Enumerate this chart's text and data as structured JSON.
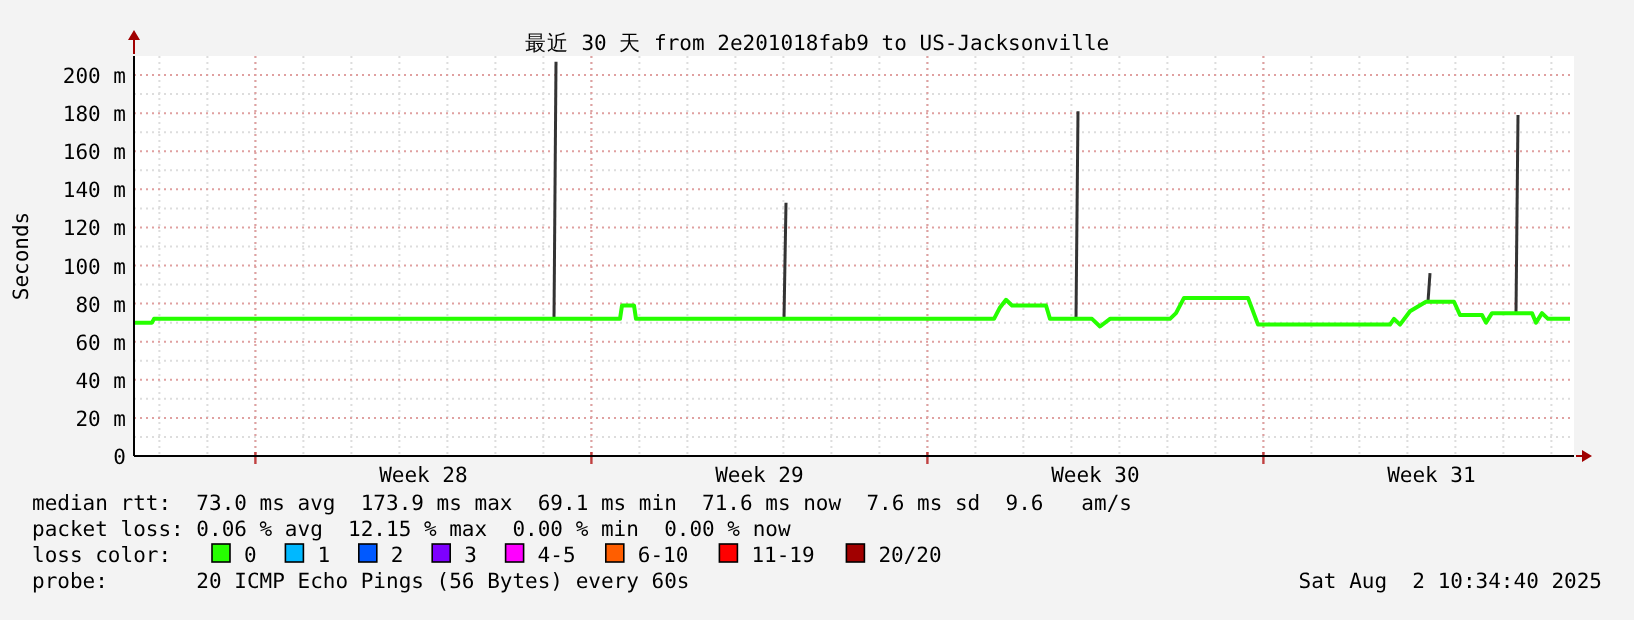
{
  "chart_data": {
    "type": "line",
    "title": "最近 30 天 from 2e201018fab9 to US-Jacksonville",
    "ylabel": "Seconds",
    "xlim": [
      "2025-07-04T11:18",
      "2025-08-03T11:18"
    ],
    "xticks": [
      {
        "value": "2025-07-07T00:00",
        "label": null
      },
      {
        "value": "2025-07-10T12:00",
        "label": "Week 28"
      },
      {
        "value": "2025-07-14T00:00",
        "label": null
      },
      {
        "value": "2025-07-17T12:00",
        "label": "Week 29"
      },
      {
        "value": "2025-07-21T00:00",
        "label": null
      },
      {
        "value": "2025-07-24T12:00",
        "label": "Week 30"
      },
      {
        "value": "2025-07-28T00:00",
        "label": null
      },
      {
        "value": "2025-07-31T12:00",
        "label": "Week 31"
      }
    ],
    "ylim": [
      0,
      210
    ],
    "yticks": [
      0,
      {
        "value": 20,
        "label": "20 m"
      },
      {
        "value": 40,
        "label": "40 m"
      },
      {
        "value": 60,
        "label": "60 m"
      },
      {
        "value": 80,
        "label": "80 m"
      },
      {
        "value": 100,
        "label": "100 m"
      },
      {
        "value": 120,
        "label": "120 m"
      },
      {
        "value": 140,
        "label": "140 m"
      },
      {
        "value": 160,
        "label": "160 m"
      },
      {
        "value": 180,
        "label": "180 m"
      },
      {
        "value": 200,
        "label": "200 m"
      }
    ],
    "grid": true,
    "legend": "bottom",
    "legend_title": "loss color:",
    "x": [
      "2025-07-04T11:18",
      "2025-07-04T20:18",
      "2025-07-04T21:18",
      "2025-07-14T14:18",
      "2025-07-14T15:18",
      "2025-07-14T21:18",
      "2025-07-14T22:18",
      "2025-07-22T09:18",
      "2025-07-22T12:18",
      "2025-07-22T15:18",
      "2025-07-22T18:18",
      "2025-07-23T11:18",
      "2025-07-23T13:18",
      "2025-07-24T10:18",
      "2025-07-24T14:18",
      "2025-07-24T19:18",
      "2025-07-26T01:18",
      "2025-07-26T04:18",
      "2025-07-26T08:18",
      "2025-07-27T16:18",
      "2025-07-27T21:18",
      "2025-07-30T15:18",
      "2025-07-30T17:18",
      "2025-07-30T20:18",
      "2025-07-31T01:18",
      "2025-07-31T09:18",
      "2025-07-31T23:18",
      "2025-08-01T02:18",
      "2025-08-01T13:18",
      "2025-08-01T15:18",
      "2025-08-01T18:18",
      "2025-08-02T14:18",
      "2025-08-02T16:18",
      "2025-08-02T19:18",
      "2025-08-02T22:18",
      "2025-08-03T09:18"
    ],
    "series": [
      {
        "color": "#333333",
        "x": [
          "2025-07-13T05:18",
          "2025-07-13T06:18"
        ],
        "values": [
          72,
          207
        ]
      },
      {
        "color": "#333333",
        "x": [
          "2025-07-18T00:18",
          "2025-07-18T01:18"
        ],
        "values": [
          72,
          133
        ]
      },
      {
        "color": "#333333",
        "x": [
          "2025-07-24T02:18",
          "2025-07-24T03:18"
        ],
        "values": [
          72,
          181
        ]
      },
      {
        "color": "#333333",
        "x": [
          "2025-07-31T10:18",
          "2025-07-31T11:18"
        ],
        "values": [
          81,
          96
        ]
      },
      {
        "color": "#333333",
        "x": [
          "2025-08-02T06:18",
          "2025-08-02T07:18"
        ],
        "values": [
          75,
          179
        ]
      },
      {
        "name": "0",
        "color": "#26ff00",
        "values": [
          70,
          70,
          72,
          72,
          79,
          79,
          72,
          72,
          78,
          82,
          79,
          79,
          72,
          72,
          68,
          72,
          72,
          75,
          83,
          83,
          69,
          69,
          72,
          69,
          76,
          81,
          81,
          74,
          74,
          70,
          75,
          75,
          70,
          75,
          72,
          72
        ]
      },
      {
        "name": "1",
        "color": "#00b8ff",
        "values": [
          null,
          null,
          null,
          null,
          null,
          null,
          null,
          null,
          null,
          null,
          null,
          null,
          null,
          null,
          null,
          null,
          null,
          null,
          null,
          null,
          null,
          null,
          null,
          null,
          null,
          null,
          null,
          null,
          null,
          null,
          null,
          null,
          null,
          null,
          null,
          null
        ]
      },
      {
        "name": "2",
        "color": "#0059ff",
        "values": [
          null,
          null,
          null,
          null,
          null,
          null,
          null,
          null,
          null,
          null,
          null,
          null,
          null,
          null,
          null,
          null,
          null,
          null,
          null,
          null,
          null,
          null,
          null,
          null,
          null,
          null,
          null,
          null,
          null,
          null,
          null,
          null,
          null,
          null,
          null,
          null
        ]
      },
      {
        "name": "3",
        "color": "#7e00ff",
        "values": [
          null,
          null,
          null,
          null,
          null,
          null,
          null,
          null,
          null,
          null,
          null,
          null,
          null,
          null,
          null,
          null,
          null,
          null,
          null,
          null,
          null,
          null,
          null,
          null,
          null,
          null,
          null,
          null,
          null,
          null,
          null,
          null,
          null,
          null,
          null,
          null
        ]
      },
      {
        "name": "4-5",
        "color": "#ff00ff",
        "values": [
          null,
          null,
          null,
          null,
          null,
          null,
          null,
          null,
          null,
          null,
          null,
          null,
          null,
          null,
          null,
          null,
          null,
          null,
          null,
          null,
          null,
          null,
          null,
          null,
          null,
          null,
          null,
          null,
          null,
          null,
          null,
          null,
          null,
          null,
          null,
          null
        ]
      },
      {
        "name": "6-10",
        "color": "#ff5e00",
        "values": [
          null,
          null,
          null,
          null,
          null,
          null,
          null,
          null,
          null,
          null,
          null,
          null,
          null,
          null,
          null,
          null,
          null,
          null,
          null,
          null,
          null,
          null,
          null,
          null,
          null,
          null,
          null,
          null,
          null,
          null,
          null,
          null,
          null,
          null,
          null,
          null
        ]
      },
      {
        "name": "11-19",
        "color": "#ff0000",
        "values": [
          null,
          null,
          null,
          null,
          null,
          null,
          null,
          null,
          null,
          null,
          null,
          null,
          null,
          null,
          null,
          null,
          null,
          null,
          null,
          null,
          null,
          null,
          null,
          null,
          null,
          null,
          null,
          null,
          null,
          null,
          null,
          null,
          null,
          null,
          null,
          null
        ]
      },
      {
        "name": "20/20",
        "color": "#a10000",
        "values": [
          null,
          null,
          null,
          null,
          null,
          null,
          null,
          null,
          null,
          null,
          null,
          null,
          null,
          null,
          null,
          null,
          null,
          null,
          null,
          null,
          null,
          null,
          null,
          null,
          null,
          null,
          null,
          null,
          null,
          null,
          null,
          null,
          null,
          null,
          null,
          null
        ]
      }
    ],
    "annotations": [
      "median rtt:  73.0 ms avg  173.9 ms max  69.1 ms min  71.6 ms now  7.6 ms sd  9.6   am/s",
      "packet loss: 0.06 % avg  12.15 % max  0.00 % min  0.00 % now",
      "probe:       20 ICMP Echo Pings (56 Bytes) every 60s",
      "Sat Aug  2 10:34:40 2025"
    ]
  }
}
